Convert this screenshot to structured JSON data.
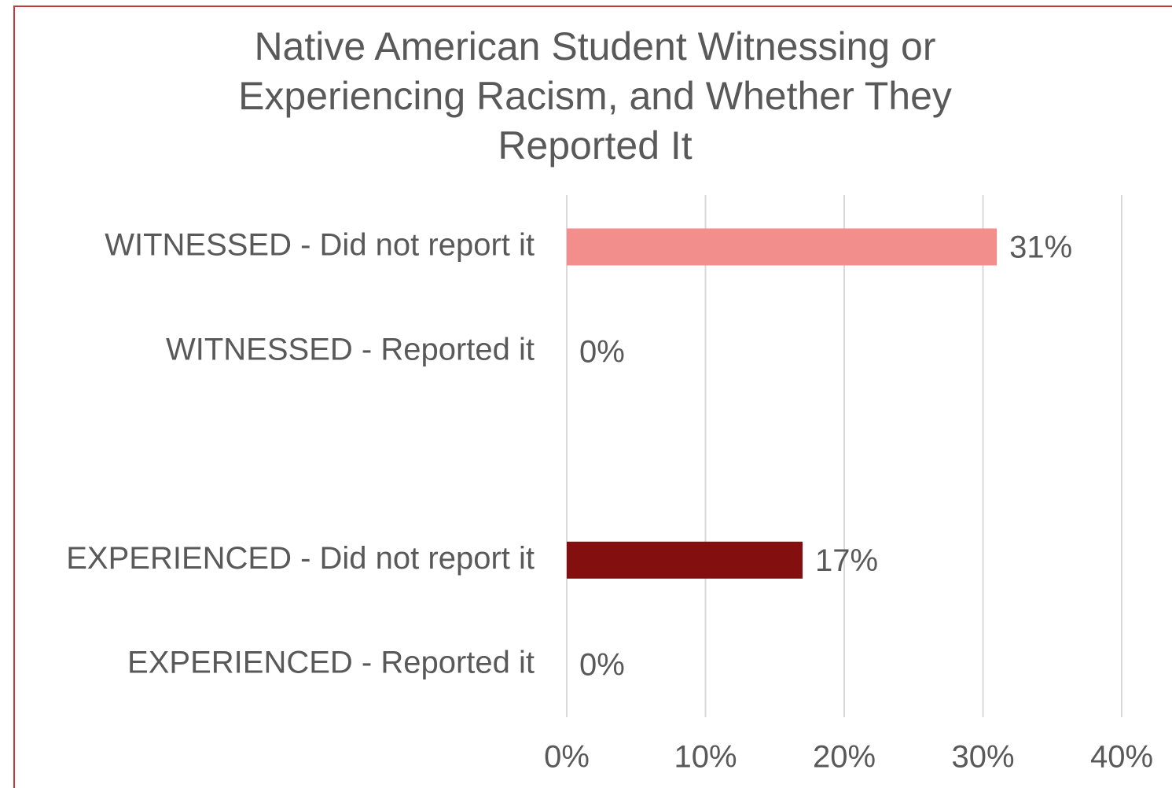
{
  "chart_data": {
    "type": "bar",
    "orientation": "horizontal",
    "title": "Native American Student Witnessing or Experiencing Racism, and Whether They Reported It",
    "categories": [
      "WITNESSED - Did not report it",
      "WITNESSED - Reported it",
      null,
      "EXPERIENCED - Did not report it",
      "EXPERIENCED - Reported it"
    ],
    "values": [
      31,
      0,
      null,
      17,
      0
    ],
    "value_labels": [
      "31%",
      "0%",
      null,
      "17%",
      "0%"
    ],
    "colors": [
      "#f28e8c",
      "#f28e8c",
      null,
      "#840f0f",
      "#840f0f"
    ],
    "xlim": [
      0,
      40
    ],
    "xticks": [
      {
        "value": 0,
        "label": "0%"
      },
      {
        "value": 10,
        "label": "10%"
      },
      {
        "value": 20,
        "label": "20%"
      },
      {
        "value": 30,
        "label": "30%"
      },
      {
        "value": 40,
        "label": "40%"
      }
    ],
    "grid": true
  }
}
